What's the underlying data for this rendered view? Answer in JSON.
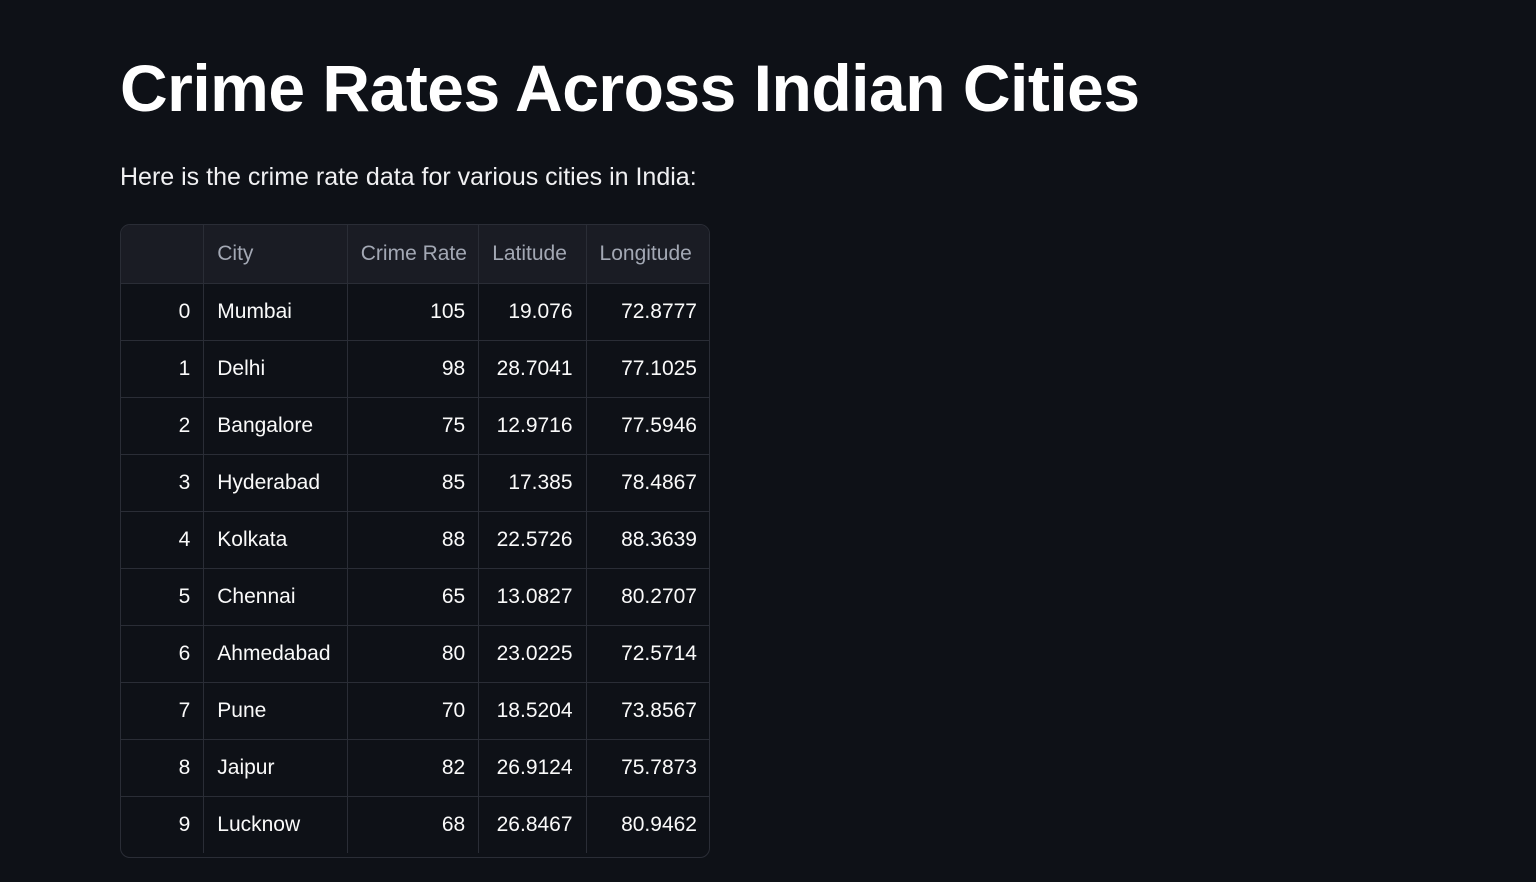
{
  "page": {
    "title": "Crime Rates Across Indian Cities",
    "intro": "Here is the crime rate data for various cities in India:"
  },
  "table": {
    "columns": [
      "",
      "City",
      "Crime Rate",
      "Latitude",
      "Longitude"
    ],
    "rows": [
      {
        "index": "0",
        "city": "Mumbai",
        "crime_rate": "105",
        "latitude": "19.076",
        "longitude": "72.8777"
      },
      {
        "index": "1",
        "city": "Delhi",
        "crime_rate": "98",
        "latitude": "28.7041",
        "longitude": "77.1025"
      },
      {
        "index": "2",
        "city": "Bangalore",
        "crime_rate": "75",
        "latitude": "12.9716",
        "longitude": "77.5946"
      },
      {
        "index": "3",
        "city": "Hyderabad",
        "crime_rate": "85",
        "latitude": "17.385",
        "longitude": "78.4867"
      },
      {
        "index": "4",
        "city": "Kolkata",
        "crime_rate": "88",
        "latitude": "22.5726",
        "longitude": "88.3639"
      },
      {
        "index": "5",
        "city": "Chennai",
        "crime_rate": "65",
        "latitude": "13.0827",
        "longitude": "80.2707"
      },
      {
        "index": "6",
        "city": "Ahmedabad",
        "crime_rate": "80",
        "latitude": "23.0225",
        "longitude": "72.5714"
      },
      {
        "index": "7",
        "city": "Pune",
        "crime_rate": "70",
        "latitude": "18.5204",
        "longitude": "73.8567"
      },
      {
        "index": "8",
        "city": "Jaipur",
        "crime_rate": "82",
        "latitude": "26.9124",
        "longitude": "75.7873"
      },
      {
        "index": "9",
        "city": "Lucknow",
        "crime_rate": "68",
        "latitude": "26.8467",
        "longitude": "80.9462"
      }
    ]
  },
  "colors": {
    "background": "#0e1117",
    "text": "#fafafa",
    "muted_text": "#a3a8b4",
    "border": "#2a2d36",
    "header_bg": "#1a1c24"
  }
}
